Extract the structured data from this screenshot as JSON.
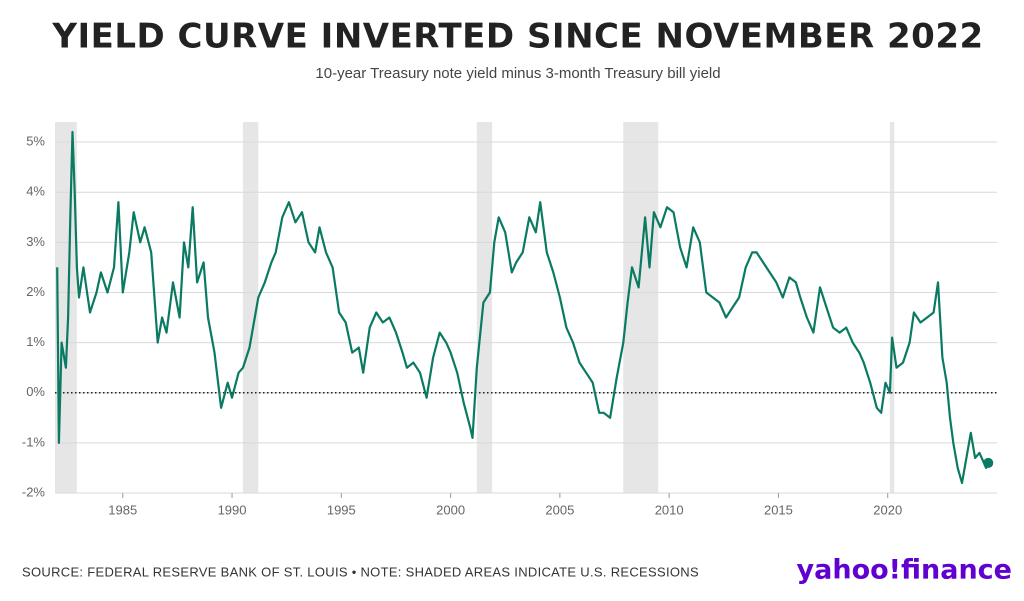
{
  "chart_data": {
    "type": "line",
    "title": "YIELD CURVE INVERTED SINCE NOVEMBER 2022",
    "subtitle": "10-year Treasury note yield minus 3-month Treasury bill yield",
    "source": "SOURCE: FEDERAL RESERVE BANK OF ST. LOUIS • NOTE: SHADED AREAS INDICATE U.S. RECESSIONS",
    "logo": "yahoo!finance",
    "xlim": [
      1981.9,
      2025
    ],
    "ylim": [
      -2,
      5.4
    ],
    "xticks": [
      1985,
      1990,
      1995,
      2000,
      2005,
      2010,
      2015,
      2020
    ],
    "yticks": [
      {
        "value": -2,
        "label": "-2%"
      },
      {
        "value": -1,
        "label": "-1%"
      },
      {
        "value": 0,
        "label": "0%"
      },
      {
        "value": 1,
        "label": "1%"
      },
      {
        "value": 2,
        "label": "2%"
      },
      {
        "value": 3,
        "label": "3%"
      },
      {
        "value": 4,
        "label": "4%"
      },
      {
        "value": 5,
        "label": "5%"
      }
    ],
    "grid": true,
    "reference_line": 0,
    "recessions": [
      [
        1981.9,
        1982.9
      ],
      [
        1990.5,
        1991.2
      ],
      [
        2001.2,
        2001.9
      ],
      [
        2007.9,
        2009.5
      ],
      [
        2020.1,
        2020.3
      ]
    ],
    "x": [
      1982.0,
      1982.08,
      1982.2,
      1982.4,
      1982.5,
      1982.6,
      1982.7,
      1982.8,
      1982.9,
      1983.0,
      1983.2,
      1983.5,
      1983.8,
      1984.0,
      1984.3,
      1984.6,
      1984.8,
      1985.0,
      1985.3,
      1985.5,
      1985.8,
      1986.0,
      1986.3,
      1986.6,
      1986.8,
      1987.0,
      1987.3,
      1987.6,
      1987.8,
      1988.0,
      1988.2,
      1988.4,
      1988.7,
      1988.9,
      1989.2,
      1989.5,
      1989.8,
      1990.0,
      1990.3,
      1990.5,
      1990.8,
      1991.0,
      1991.2,
      1991.5,
      1991.8,
      1992.0,
      1992.3,
      1992.6,
      1992.9,
      1993.2,
      1993.5,
      1993.8,
      1994.0,
      1994.3,
      1994.6,
      1994.9,
      1995.2,
      1995.5,
      1995.8,
      1996.0,
      1996.3,
      1996.6,
      1996.9,
      1997.2,
      1997.5,
      1997.8,
      1998.0,
      1998.3,
      1998.6,
      1998.9,
      1999.2,
      1999.5,
      1999.8,
      2000.0,
      2000.3,
      2000.6,
      2000.9,
      2001.0,
      2001.2,
      2001.5,
      2001.8,
      2002.0,
      2002.2,
      2002.5,
      2002.8,
      2003.0,
      2003.3,
      2003.6,
      2003.9,
      2004.1,
      2004.4,
      2004.7,
      2005.0,
      2005.3,
      2005.6,
      2005.9,
      2006.2,
      2006.5,
      2006.8,
      2007.0,
      2007.3,
      2007.6,
      2007.9,
      2008.1,
      2008.3,
      2008.6,
      2008.9,
      2009.1,
      2009.3,
      2009.6,
      2009.9,
      2010.2,
      2010.5,
      2010.8,
      2011.1,
      2011.4,
      2011.7,
      2012.0,
      2012.3,
      2012.6,
      2012.9,
      2013.2,
      2013.5,
      2013.8,
      2014.0,
      2014.3,
      2014.6,
      2014.9,
      2015.2,
      2015.5,
      2015.8,
      2016.0,
      2016.3,
      2016.6,
      2016.9,
      2017.2,
      2017.5,
      2017.8,
      2018.1,
      2018.4,
      2018.7,
      2018.9,
      2019.2,
      2019.5,
      2019.7,
      2019.9,
      2020.1,
      2020.2,
      2020.4,
      2020.7,
      2021.0,
      2021.2,
      2021.5,
      2021.8,
      2022.1,
      2022.3,
      2022.5,
      2022.7,
      2022.85,
      2023.0,
      2023.2,
      2023.4,
      2023.6,
      2023.8,
      2024.0,
      2024.2,
      2024.4,
      2024.5,
      2024.6
    ],
    "series": [
      {
        "name": "10-year minus 3-month",
        "color": "#0b7a62",
        "values": [
          2.5,
          -1.0,
          1.0,
          0.5,
          1.5,
          3.5,
          5.2,
          4.0,
          2.5,
          1.9,
          2.5,
          1.6,
          2.0,
          2.4,
          2.0,
          2.5,
          3.8,
          2.0,
          2.8,
          3.6,
          3.0,
          3.3,
          2.8,
          1.0,
          1.5,
          1.2,
          2.2,
          1.5,
          3.0,
          2.5,
          3.7,
          2.2,
          2.6,
          1.5,
          0.8,
          -0.3,
          0.2,
          -0.1,
          0.4,
          0.5,
          0.9,
          1.4,
          1.9,
          2.2,
          2.6,
          2.8,
          3.5,
          3.8,
          3.4,
          3.6,
          3.0,
          2.8,
          3.3,
          2.8,
          2.5,
          1.6,
          1.4,
          0.8,
          0.9,
          0.4,
          1.3,
          1.6,
          1.4,
          1.5,
          1.2,
          0.8,
          0.5,
          0.6,
          0.4,
          -0.1,
          0.7,
          1.2,
          1.0,
          0.8,
          0.4,
          -0.2,
          -0.7,
          -0.9,
          0.5,
          1.8,
          2.0,
          3.0,
          3.5,
          3.2,
          2.4,
          2.6,
          2.8,
          3.5,
          3.2,
          3.8,
          2.8,
          2.4,
          1.9,
          1.3,
          1.0,
          0.6,
          0.4,
          0.2,
          -0.4,
          -0.4,
          -0.5,
          0.3,
          1.0,
          1.8,
          2.5,
          2.1,
          3.5,
          2.5,
          3.6,
          3.3,
          3.7,
          3.6,
          2.9,
          2.5,
          3.3,
          3.0,
          2.0,
          1.9,
          1.8,
          1.5,
          1.7,
          1.9,
          2.5,
          2.8,
          2.8,
          2.6,
          2.4,
          2.2,
          1.9,
          2.3,
          2.2,
          1.9,
          1.5,
          1.2,
          2.1,
          1.7,
          1.3,
          1.2,
          1.3,
          1.0,
          0.8,
          0.6,
          0.2,
          -0.3,
          -0.4,
          0.2,
          0.0,
          1.1,
          0.5,
          0.6,
          1.0,
          1.6,
          1.4,
          1.5,
          1.6,
          2.2,
          0.7,
          0.2,
          -0.5,
          -1.0,
          -1.5,
          -1.8,
          -1.3,
          -0.8,
          -1.3,
          -1.2,
          -1.4,
          -1.5,
          -1.4
        ]
      }
    ]
  }
}
